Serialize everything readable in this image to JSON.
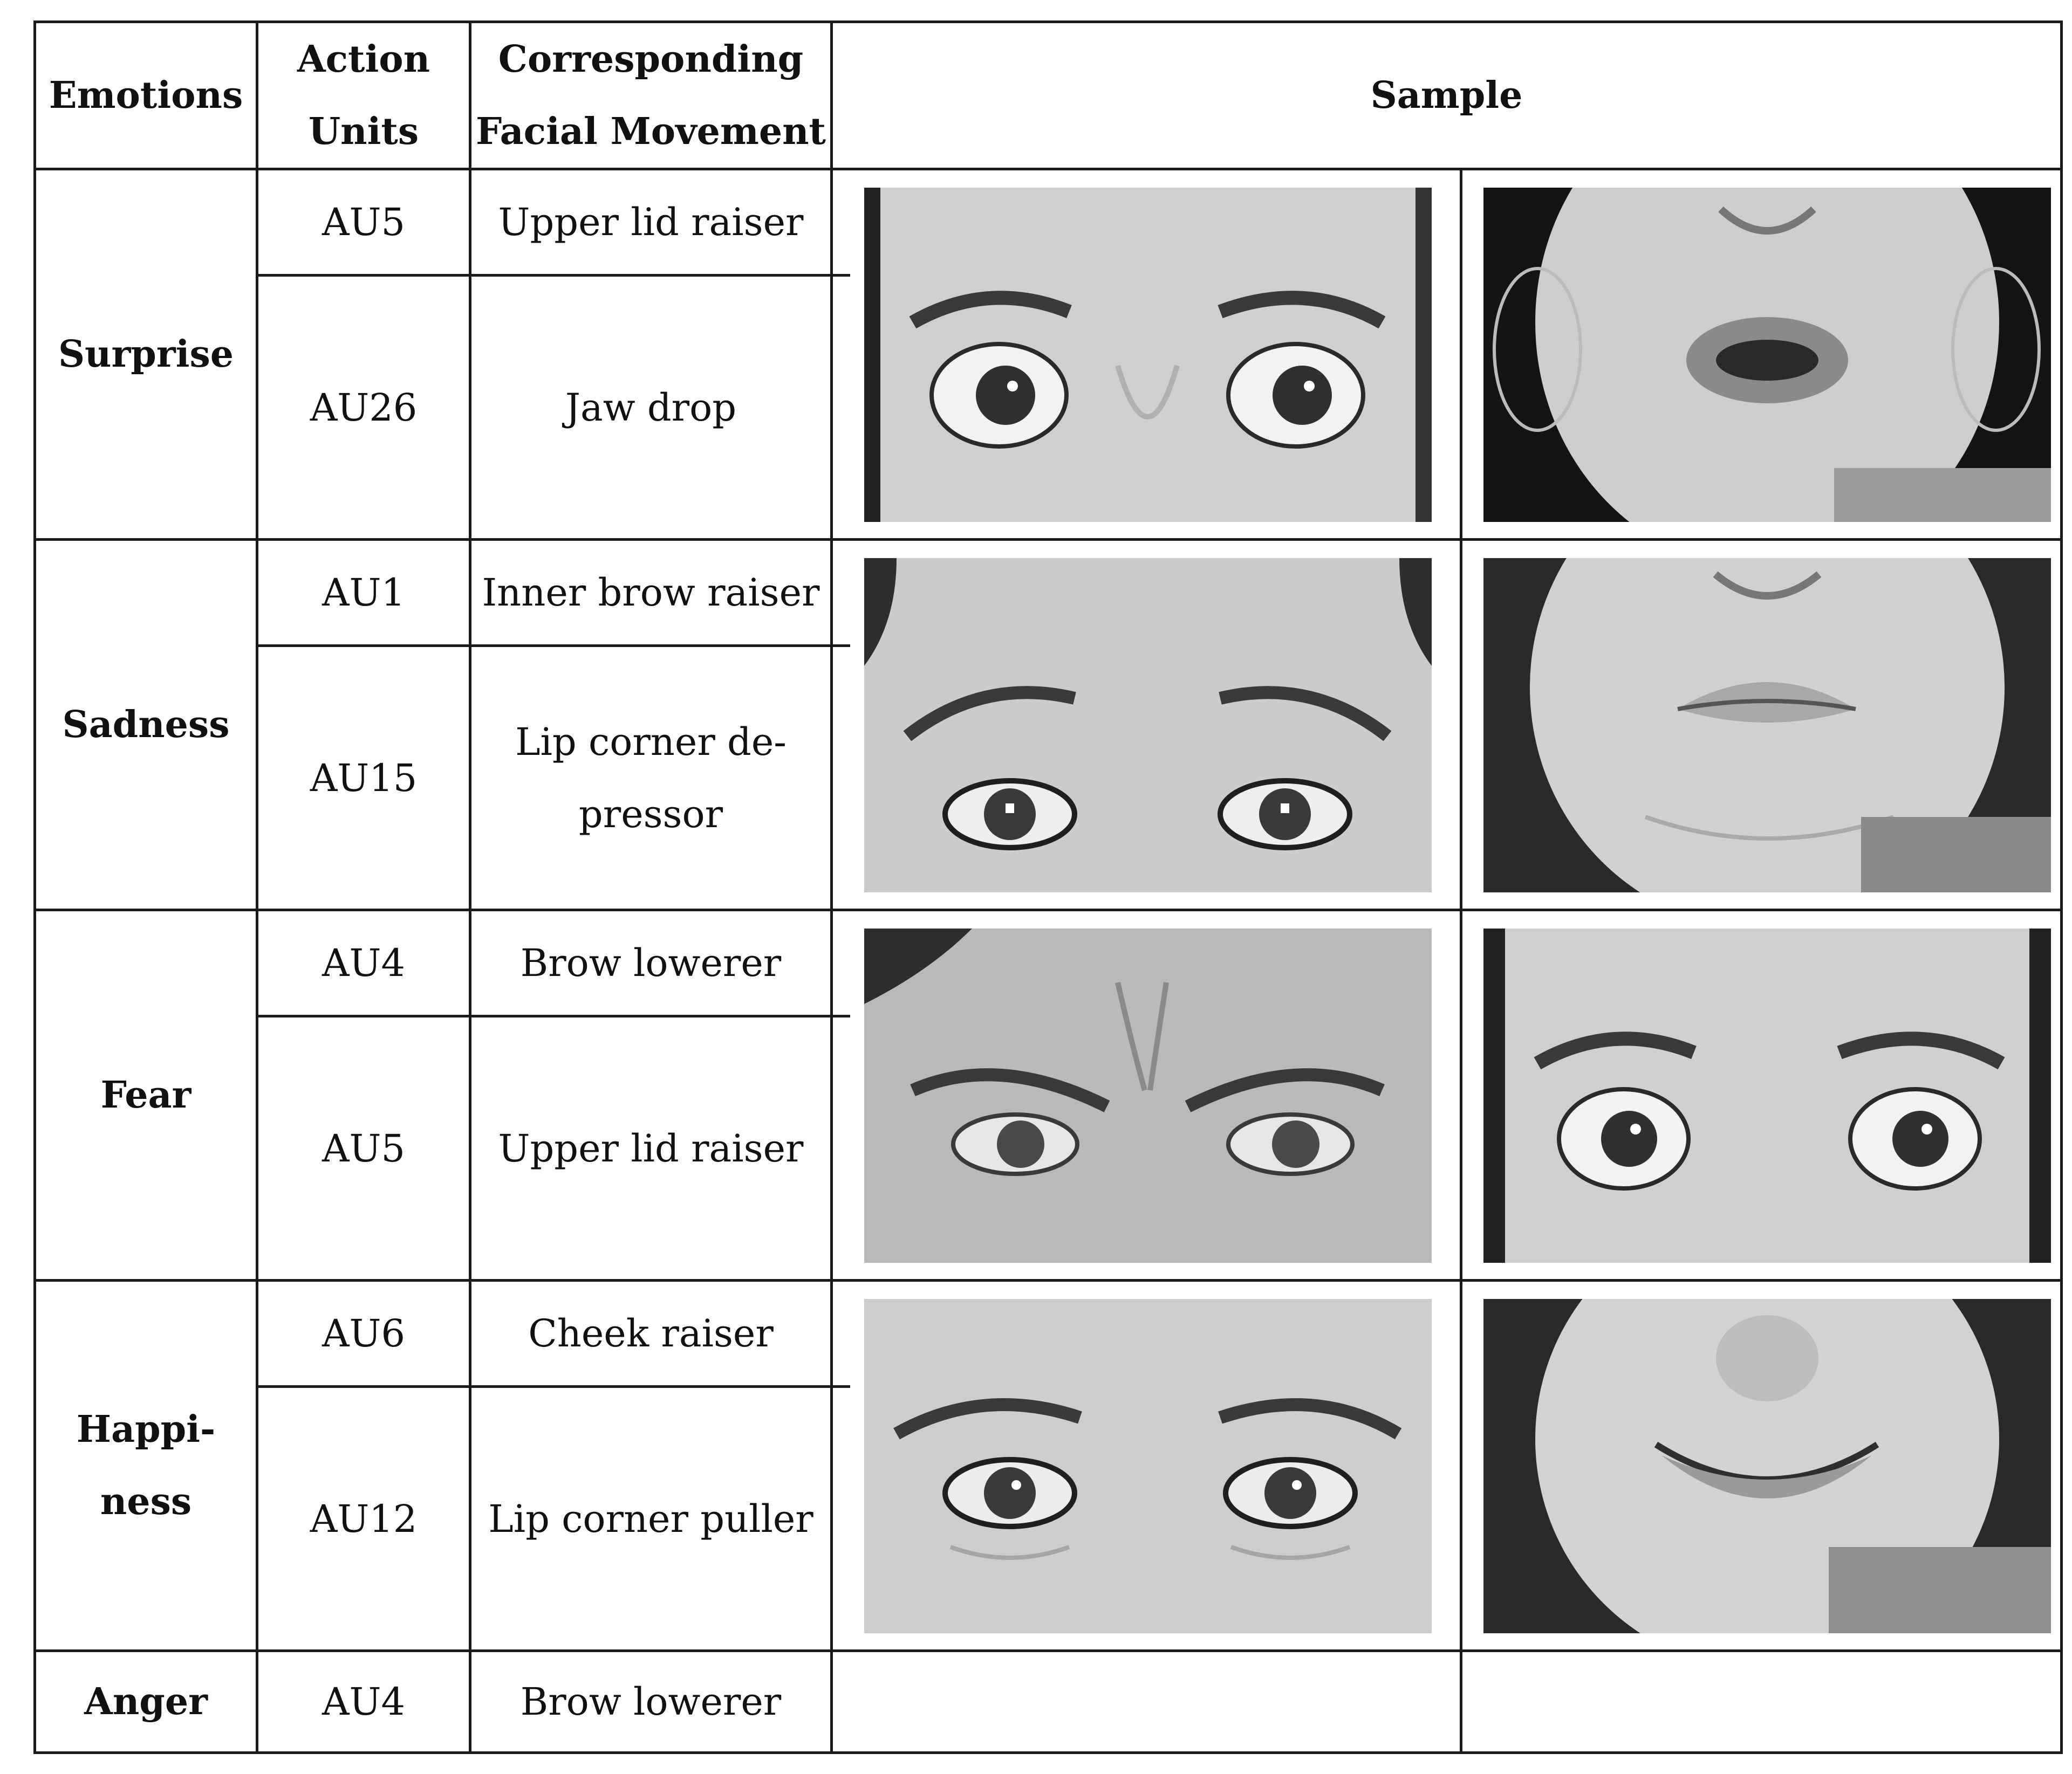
{
  "table": {
    "headers": {
      "emotions": "Emotions",
      "action_units_1": "Action",
      "action_units_2": "Units",
      "facial_movement_1": "Corresponding",
      "facial_movement_2": "Facial Movement",
      "sample": "Sample"
    },
    "rows": [
      {
        "emotion": "Surprise",
        "units": [
          {
            "au": "AU5",
            "movement": "Upper lid raiser"
          },
          {
            "au": "AU26",
            "movement": "Jaw drop"
          }
        ],
        "samples": [
          "eyes-wide",
          "mouth-open"
        ]
      },
      {
        "emotion": "Sadness",
        "units": [
          {
            "au": "AU1",
            "movement": "Inner brow raiser"
          },
          {
            "au": "AU15",
            "movement_1": "Lip corner de-",
            "movement_2": "pressor"
          }
        ],
        "samples": [
          "eyes-brows-raised",
          "mouth-frown"
        ]
      },
      {
        "emotion": "Fear",
        "units": [
          {
            "au": "AU4",
            "movement": "Brow lowerer"
          },
          {
            "au": "AU5",
            "movement": "Upper lid raiser"
          }
        ],
        "samples": [
          "eyes-brows-lowered",
          "eyes-wide"
        ]
      },
      {
        "emotion_1": "Happi-",
        "emotion_2": "ness",
        "units": [
          {
            "au": "AU6",
            "movement": "Cheek raiser"
          },
          {
            "au": "AU12",
            "movement": "Lip corner puller"
          }
        ],
        "samples": [
          "eyes-cheeks-raised",
          "mouth-smile"
        ]
      },
      {
        "emotion": "Anger",
        "units": [
          {
            "au": "AU4",
            "movement": "Brow lowerer"
          }
        ],
        "samples": []
      }
    ]
  },
  "colors": {
    "border": "#1a1a1a",
    "photo_bg": "#6a6a6a",
    "skin": "#c9c9c9"
  }
}
